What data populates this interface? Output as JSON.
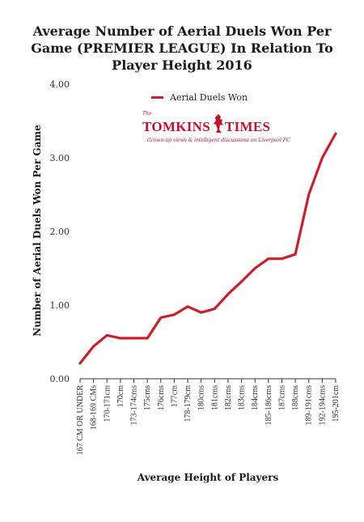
{
  "chart_data": {
    "type": "line",
    "title": "Average Number of Aerial Duels Won Per Game (PREMIER LEAGUE) In Relation To Player Height 2016",
    "xlabel": "Average Height of Players",
    "ylabel": "Number of Aerial Duels Won Per Game",
    "ylim": [
      0,
      4
    ],
    "yticks": [
      "0.00",
      "1.00",
      "2.00",
      "3.00",
      "4.00"
    ],
    "grid": false,
    "legend_position": "top-center",
    "categories": [
      "167 CM OR UNDER",
      "168-169 CMs",
      "170-171cm",
      "170cm",
      "173-174cms",
      "175cms",
      "176cms",
      "177cm",
      "178-179cm",
      "180cms",
      "181cms",
      "182cms",
      "183cms",
      "184cms",
      "185-186cms",
      "187cms",
      "188cms",
      "189-191cms",
      "192-194cms",
      "195-201cm"
    ],
    "series": [
      {
        "name": "Aerial Duels Won",
        "color": "#cc1f2a",
        "values": [
          0.21,
          0.44,
          0.59,
          0.55,
          0.55,
          0.55,
          0.83,
          0.87,
          0.98,
          0.9,
          0.95,
          1.15,
          1.32,
          1.5,
          1.63,
          1.63,
          1.69,
          2.5,
          3.0,
          3.33
        ]
      }
    ]
  },
  "logo": {
    "the": "The",
    "name_left": "TOMKINS",
    "name_right": "TIMES",
    "tagline": "Grown-up views & intelligent discussions on Liverpool FC"
  }
}
